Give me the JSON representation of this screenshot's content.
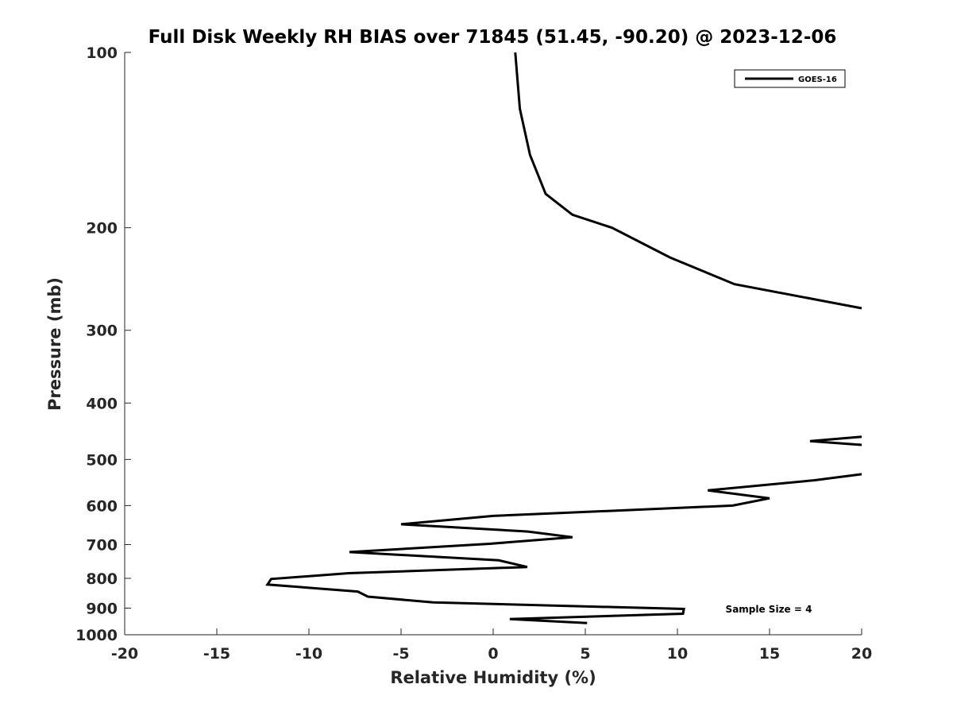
{
  "chart_data": {
    "type": "line",
    "title": "Full Disk Weekly RH BIAS over 71845 (51.45, -90.20) @ 2023-12-06",
    "xlabel": "Relative Humidity (%)",
    "ylabel": "Pressure (mb)",
    "xlim": [
      -20,
      20
    ],
    "ylim": [
      100,
      1000
    ],
    "yscale": "log",
    "y_reversed": true,
    "grid": false,
    "legend_position": "top-right",
    "x_ticks": [
      "-20",
      "-15",
      "-10",
      "-5",
      "0",
      "5",
      "10",
      "15",
      "20"
    ],
    "y_ticks": [
      "100",
      "200",
      "300",
      "400",
      "500",
      "600",
      "700",
      "800",
      "900",
      "1000"
    ],
    "annotation": "Sample Size = 4",
    "series": [
      {
        "name": "GOES-16",
        "color": "#000000",
        "segments": [
          {
            "x": [
              1.2,
              1.45,
              2.0,
              2.85,
              4.3,
              6.45,
              9.6,
              13.1,
              20.0
            ],
            "y": [
              100,
              125,
              150,
              175,
              190,
              200,
              225,
              250,
              275
            ]
          },
          {
            "x": [
              20.0,
              17.2,
              20.0
            ],
            "y": [
              457,
              465,
              472
            ]
          },
          {
            "x": [
              20.0,
              17.4,
              11.65,
              15.0,
              13.0,
              0.0,
              -5.0,
              1.9,
              4.3,
              -0.2,
              -7.8,
              0.3,
              1.85,
              -7.85,
              -12.05,
              -12.25,
              -7.35,
              -6.8,
              -3.25,
              10.35,
              10.3,
              0.9,
              5.1
            ],
            "y": [
              530,
              543,
              565,
              583,
              600,
              625,
              646,
              665,
              680,
              698,
              721,
              745,
              765,
              784,
              802,
              820,
              843,
              860,
              880,
              903,
              920,
              940,
              955
            ]
          }
        ]
      }
    ]
  }
}
